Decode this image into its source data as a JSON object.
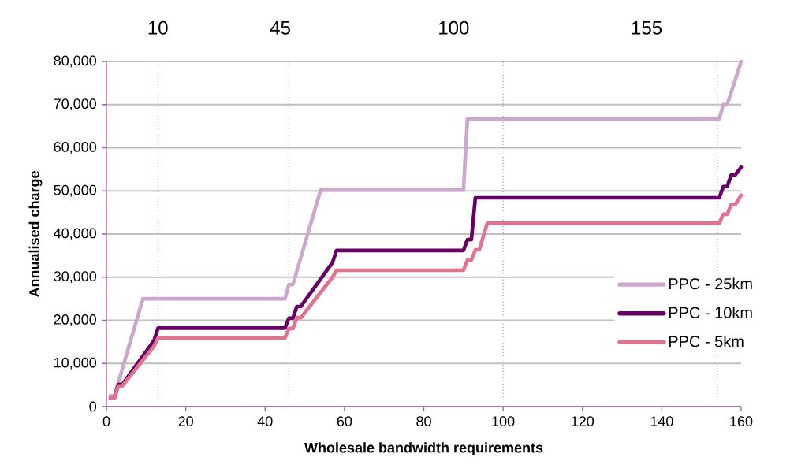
{
  "chart_data": {
    "type": "line",
    "xlabel": "Wholesale bandwidth requirements",
    "ylabel": "Annualised charge",
    "xlim": [
      0,
      160
    ],
    "ylim": [
      0,
      80000
    ],
    "xticks": [
      0,
      20,
      40,
      60,
      80,
      100,
      120,
      140,
      160
    ],
    "yticks": [
      {
        "value": 0,
        "label": "0"
      },
      {
        "value": 10000,
        "label": "10,000"
      },
      {
        "value": 20000,
        "label": "20,000"
      },
      {
        "value": 30000,
        "label": "30,000"
      },
      {
        "value": 40000,
        "label": "40,000"
      },
      {
        "value": 50000,
        "label": "50,000"
      },
      {
        "value": 60000,
        "label": "60,000"
      },
      {
        "value": 70000,
        "label": "70,000"
      },
      {
        "value": 80000,
        "label": "80,000"
      }
    ],
    "grid": "y",
    "legend": "right",
    "marker": "none",
    "line_style": "solid",
    "annotations": [
      "10",
      "45",
      "100",
      "155"
    ],
    "ref_lines": [
      {
        "axis": "x",
        "value": 13,
        "color": "#aaaaaa",
        "line_style": "dotted"
      },
      {
        "axis": "x",
        "value": 46,
        "color": "#aaaaaa",
        "line_style": "dotted"
      },
      {
        "axis": "x",
        "value": 100,
        "color": "#aaaaaa",
        "line_style": "dotted"
      },
      {
        "axis": "x",
        "value": 154,
        "color": "#aaaaaa",
        "line_style": "dotted"
      }
    ],
    "series": [
      {
        "name": "PPC - 25km",
        "color": "#cca8cc",
        "x": [
          1,
          2,
          9.2,
          45,
          46,
          47,
          54,
          90,
          91,
          154.5,
          155.5,
          156.5,
          160
        ],
        "values": [
          2500,
          2500,
          25000,
          25000,
          28300,
          28300,
          50200,
          50200,
          66700,
          66700,
          70000,
          70000,
          80000
        ]
      },
      {
        "name": "PPC - 10km",
        "color": "#660066",
        "x": [
          1,
          2,
          3,
          4,
          12,
          13,
          45,
          46,
          47,
          48,
          49,
          57,
          58,
          90,
          91,
          92,
          93,
          154.5,
          155.5,
          156.5,
          157.5,
          158.5,
          160
        ],
        "values": [
          2000,
          2000,
          5100,
          5100,
          15300,
          18200,
          18200,
          20500,
          20500,
          23200,
          23200,
          33400,
          36200,
          36200,
          38700,
          38700,
          48400,
          48400,
          51000,
          51000,
          53700,
          53700,
          55500
        ]
      },
      {
        "name": "PPC - 5km",
        "color": "#e07490",
        "x": [
          1,
          2,
          3,
          4,
          12,
          13,
          45,
          46,
          47,
          48,
          49,
          57,
          58,
          90,
          91,
          92,
          93,
          94,
          96,
          154.5,
          155.5,
          156.5,
          157.5,
          158.5,
          160
        ],
        "values": [
          2000,
          2000,
          4800,
          4800,
          14000,
          15900,
          15900,
          18100,
          18100,
          20600,
          20600,
          30000,
          31600,
          31600,
          34000,
          34000,
          36300,
          36400,
          42500,
          42500,
          44600,
          44600,
          46800,
          46800,
          49000
        ]
      }
    ]
  }
}
